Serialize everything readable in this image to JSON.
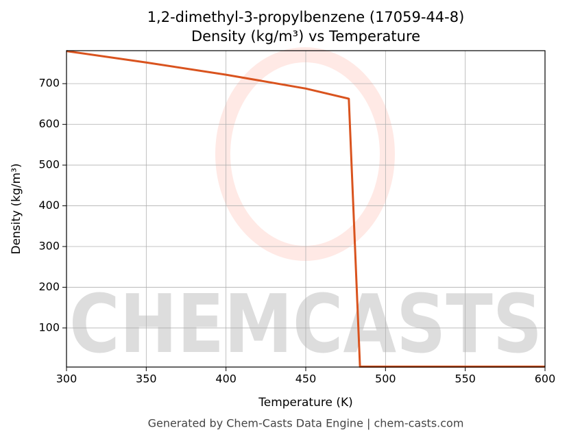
{
  "chart_data": {
    "type": "line",
    "title": "1,2-dimethyl-3-propylbenzene (17059-44-8)",
    "subtitle": "Density (kg/m³) vs Temperature",
    "x_label": "Temperature (K)",
    "y_label": "Density (kg/m³)",
    "footer": "Generated by Chem-Casts Data Engine | chem-casts.com",
    "watermark": "CHEMCASTS",
    "x": [
      300,
      350,
      400,
      450,
      477,
      484,
      600
    ],
    "series": [
      {
        "name": "Density",
        "color": "#d9531e",
        "values": [
          780,
          752,
          722,
          688,
          663,
          5,
          5
        ]
      }
    ],
    "xlim": [
      300,
      600
    ],
    "xticks": [
      300,
      350,
      400,
      450,
      500,
      550,
      600
    ],
    "ylim": [
      4,
      781
    ],
    "yticks": [
      100,
      200,
      300,
      400,
      500,
      600,
      700
    ],
    "grid": true
  }
}
